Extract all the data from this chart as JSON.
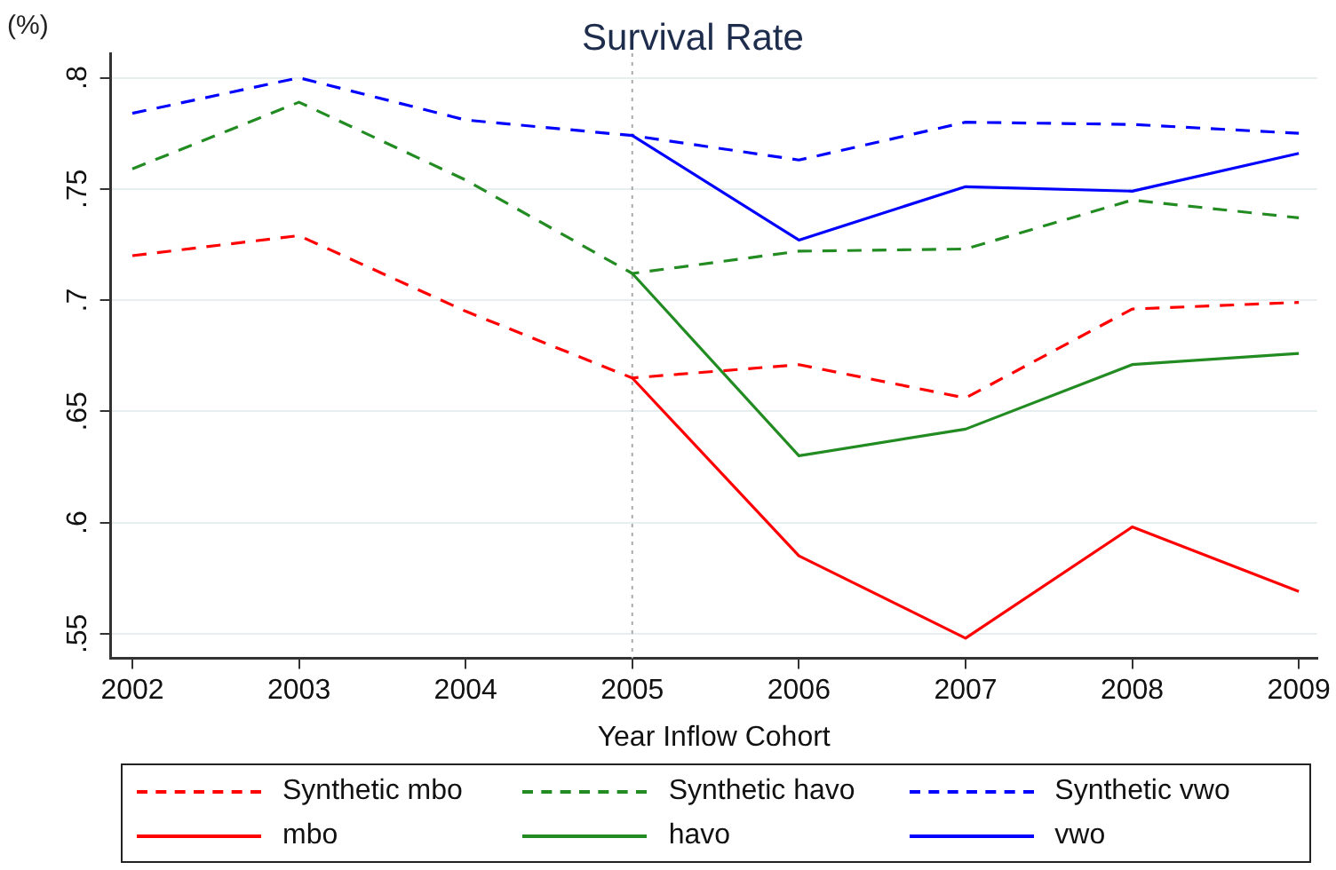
{
  "chart_data": {
    "type": "line",
    "title": "Survival Rate",
    "xlabel": "Year Inflow Cohort",
    "ylabel": "(%)",
    "x": [
      2002,
      2003,
      2004,
      2005,
      2006,
      2007,
      2008,
      2009
    ],
    "xlim": [
      2001.87,
      2009.11
    ],
    "xticks": [
      2002,
      2003,
      2004,
      2005,
      2006,
      2007,
      2008,
      2009
    ],
    "ylim": [
      0.539,
      0.811
    ],
    "yticks": [
      {
        "value": 0.55,
        "label": ".55"
      },
      {
        "value": 0.6,
        "label": ".6"
      },
      {
        "value": 0.65,
        "label": ".65"
      },
      {
        "value": 0.7,
        "label": ".7"
      },
      {
        "value": 0.75,
        "label": ".75"
      },
      {
        "value": 0.8,
        "label": ".8"
      }
    ],
    "series": [
      {
        "name": "Synthetic mbo",
        "color": "#ff0000",
        "line_style": "dashed",
        "values": [
          0.72,
          0.729,
          0.695,
          0.665,
          0.671,
          0.656,
          0.696,
          0.699
        ]
      },
      {
        "name": "Synthetic havo",
        "color": "#228b22",
        "line_style": "dashed",
        "values": [
          0.759,
          0.789,
          0.754,
          0.712,
          0.722,
          0.723,
          0.745,
          0.737
        ]
      },
      {
        "name": "Synthetic vwo",
        "color": "#0000ff",
        "line_style": "dashed",
        "values": [
          0.784,
          0.8,
          0.781,
          0.774,
          0.763,
          0.78,
          0.779,
          0.775
        ]
      },
      {
        "name": "mbo",
        "color": "#ff0000",
        "line_style": "solid",
        "values": [
          null,
          null,
          null,
          0.665,
          0.585,
          0.548,
          0.598,
          0.569
        ]
      },
      {
        "name": "havo",
        "color": "#228b22",
        "line_style": "solid",
        "values": [
          null,
          null,
          null,
          0.712,
          0.63,
          0.642,
          0.671,
          0.676
        ]
      },
      {
        "name": "vwo",
        "color": "#0000ff",
        "line_style": "solid",
        "values": [
          null,
          null,
          null,
          0.774,
          0.727,
          0.751,
          0.749,
          0.766
        ]
      }
    ],
    "ref_lines": [
      {
        "axis": "x",
        "value": 2005,
        "color": "#aaaaaa",
        "line_style": "dotted"
      }
    ],
    "grid": "y",
    "legend": "bottom",
    "marker": "none"
  }
}
